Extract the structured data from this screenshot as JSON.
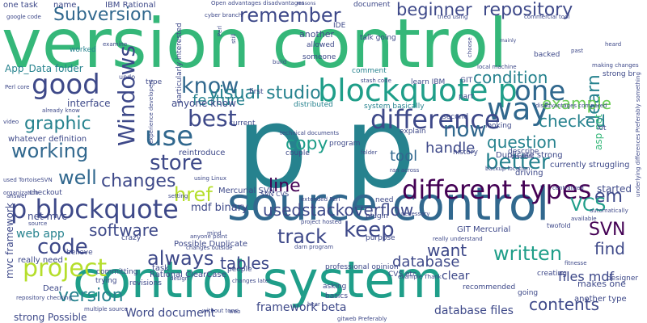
{
  "palette": {
    "dark_purple": "#440154",
    "indigo": "#3e4989",
    "blue": "#31688e",
    "teal": "#26828e",
    "green_teal": "#1f9e89",
    "green": "#35b779",
    "light_green": "#6ece58",
    "yellow_green": "#b5de2b",
    "yellow": "#fde725"
  },
  "words": [
    {
      "text": "version control"
    },
    {
      "text": "p p"
    },
    {
      "text": "control system"
    },
    {
      "text": "source control"
    },
    {
      "text": "blockquote p"
    },
    {
      "text": "different types"
    },
    {
      "text": "p blockquote"
    },
    {
      "text": "good"
    },
    {
      "text": "use"
    },
    {
      "text": "one"
    },
    {
      "text": "way"
    },
    {
      "text": "know"
    },
    {
      "text": "difference"
    },
    {
      "text": "Windows"
    },
    {
      "text": "best"
    },
    {
      "text": "remember"
    },
    {
      "text": "repository"
    },
    {
      "text": "beginner"
    },
    {
      "text": "Subversion"
    },
    {
      "text": "visual studio"
    },
    {
      "text": "condition"
    },
    {
      "text": "feature"
    },
    {
      "text": "working"
    },
    {
      "text": "graphic"
    },
    {
      "text": "store"
    },
    {
      "text": "copy"
    },
    {
      "text": "now"
    },
    {
      "text": "question"
    },
    {
      "text": "learn"
    },
    {
      "text": "better"
    },
    {
      "text": "checked"
    },
    {
      "text": "example"
    },
    {
      "text": "tool"
    },
    {
      "text": "handle"
    },
    {
      "text": "well"
    },
    {
      "text": "changes"
    },
    {
      "text": "href"
    },
    {
      "text": "line"
    },
    {
      "text": "usedstackoverflow"
    },
    {
      "text": "keep"
    },
    {
      "text": "track"
    },
    {
      "text": "em"
    },
    {
      "text": "VCS"
    },
    {
      "text": "SVN"
    },
    {
      "text": "find"
    },
    {
      "text": "want"
    },
    {
      "text": "written"
    },
    {
      "text": "code"
    },
    {
      "text": "software"
    },
    {
      "text": "project"
    },
    {
      "text": "always"
    },
    {
      "text": "tables"
    },
    {
      "text": "database"
    },
    {
      "text": "version"
    },
    {
      "text": "contents"
    },
    {
      "text": "files mdf"
    },
    {
      "text": "database files"
    },
    {
      "text": "framework beta"
    },
    {
      "text": "Word document"
    },
    {
      "text": "strong Possible"
    },
    {
      "text": "web app"
    },
    {
      "text": "net mvc"
    },
    {
      "text": "mvc framework"
    },
    {
      "text": "mdf binary"
    },
    {
      "text": "anyone know"
    },
    {
      "text": "interface"
    },
    {
      "text": "App_Data folder"
    },
    {
      "text": "IBM Rational"
    },
    {
      "text": "started"
    },
    {
      "text": "asp net"
    },
    {
      "text": "Mercurial SVN"
    },
    {
      "text": "GIT Mercurial"
    },
    {
      "text": "reintroduce"
    },
    {
      "text": "really need"
    },
    {
      "text": "Possible Duplicate"
    },
    {
      "text": "Duplicate strong"
    },
    {
      "text": "Rational ClearCase"
    },
    {
      "text": "whatever definition"
    },
    {
      "text": "currently struggling"
    },
    {
      "text": "driving"
    },
    {
      "text": "clear"
    },
    {
      "text": "makes one"
    },
    {
      "text": "another type"
    },
    {
      "text": "distributed"
    },
    {
      "text": "system basically"
    },
    {
      "text": "one task"
    },
    {
      "text": "name"
    },
    {
      "text": "another"
    },
    {
      "text": "comment"
    },
    {
      "text": "backed"
    },
    {
      "text": "learn IBM"
    },
    {
      "text": "GIT"
    },
    {
      "text": "strong br"
    },
    {
      "text": "type"
    },
    {
      "text": "worked"
    },
    {
      "text": "part"
    },
    {
      "text": "describe"
    },
    {
      "text": "lot"
    },
    {
      "text": "history"
    },
    {
      "text": "program"
    },
    {
      "text": "couple"
    },
    {
      "text": "plugin"
    },
    {
      "text": "purpose"
    },
    {
      "text": "asking"
    },
    {
      "text": "basics"
    },
    {
      "text": "task"
    },
    {
      "text": "revisions"
    },
    {
      "text": "Dear"
    },
    {
      "text": "trying"
    },
    {
      "text": "committing"
    },
    {
      "text": "crazy"
    },
    {
      "text": "believe"
    },
    {
      "text": "checkout"
    },
    {
      "text": "CVS etc"
    },
    {
      "text": "recommended"
    },
    {
      "text": "creating"
    },
    {
      "text": "designer"
    },
    {
      "text": "going"
    },
    {
      "text": "need"
    },
    {
      "text": "second"
    },
    {
      "text": "explain"
    },
    {
      "text": "looking"
    },
    {
      "text": "allowed"
    },
    {
      "text": "someone"
    },
    {
      "text": "talk going"
    },
    {
      "text": "document"
    },
    {
      "text": "IDE"
    },
    {
      "text": "reasons"
    },
    {
      "text": "mainly"
    },
    {
      "text": "tried using"
    },
    {
      "text": "Open advantages disadvantages"
    },
    {
      "text": "local machine"
    },
    {
      "text": "making changes"
    },
    {
      "text": "disadvantages compared"
    },
    {
      "text": "SVN CVS"
    },
    {
      "text": "particularly interested"
    },
    {
      "text": "professional opinion"
    },
    {
      "text": "example Thank"
    },
    {
      "text": "repository checking"
    },
    {
      "text": "already know"
    },
    {
      "text": "current"
    },
    {
      "text": "Perl"
    },
    {
      "text": "first"
    },
    {
      "text": "undo"
    },
    {
      "text": "stash code"
    },
    {
      "text": "technical documents"
    },
    {
      "text": "using Linux"
    },
    {
      "text": "ran across"
    },
    {
      "text": "backup location"
    },
    {
      "text": "project hosted"
    },
    {
      "text": "really understand"
    },
    {
      "text": "twofold"
    },
    {
      "text": "available"
    },
    {
      "text": "changes later"
    },
    {
      "text": "extended Perl"
    },
    {
      "text": "necessary"
    },
    {
      "text": "fitnesse"
    },
    {
      "text": "used TortoiseSVN"
    },
    {
      "text": "organization"
    },
    {
      "text": "answer"
    },
    {
      "text": "source"
    },
    {
      "text": "hear"
    },
    {
      "text": "web"
    },
    {
      "text": "without tons"
    },
    {
      "text": "people"
    },
    {
      "text": "setting"
    },
    {
      "text": "mind"
    },
    {
      "text": "build"
    },
    {
      "text": "folder"
    },
    {
      "text": "benefits"
    },
    {
      "text": "centralized"
    },
    {
      "text": "automatically"
    },
    {
      "text": "underlying differences"
    },
    {
      "text": "Preferably something"
    },
    {
      "text": "video"
    },
    {
      "text": "google code"
    },
    {
      "text": "experience developers"
    },
    {
      "text": "cyber branch"
    },
    {
      "text": "past"
    },
    {
      "text": "heard"
    },
    {
      "text": "commercial tool"
    },
    {
      "text": "choose"
    },
    {
      "text": "multiple source"
    },
    {
      "text": "anyone point"
    },
    {
      "text": "changes outside"
    },
    {
      "text": "darn program"
    },
    {
      "text": "gitweb Preferably"
    },
    {
      "text": "design"
    },
    {
      "text": "still"
    },
    {
      "text": "Perl core"
    },
    {
      "text": "examine"
    }
  ]
}
